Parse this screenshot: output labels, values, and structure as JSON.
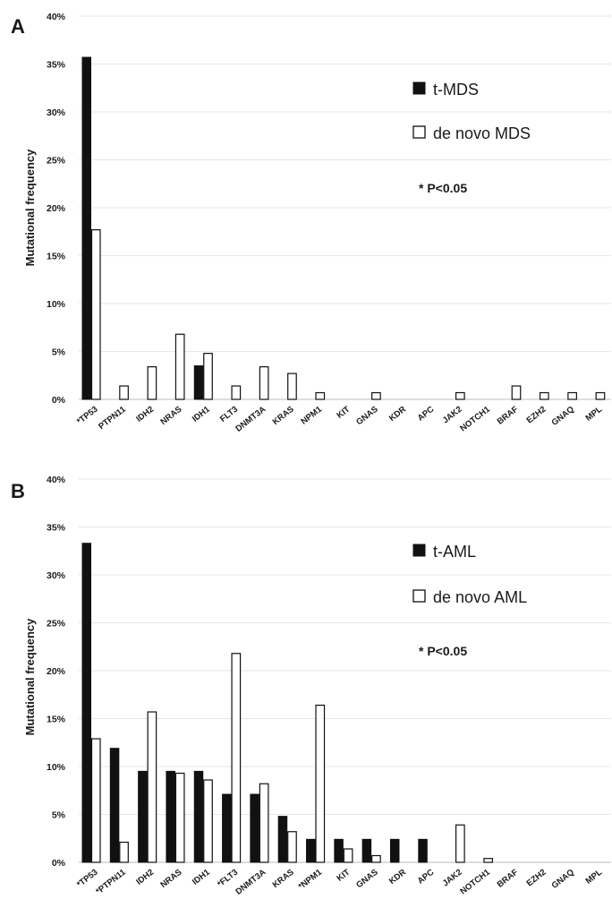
{
  "colors": {
    "mutant_bar": "#111111",
    "open_bar_fill": "#ffffff",
    "grid": "#e6e6e6"
  },
  "chart_data": [
    {
      "type": "bar",
      "panel": "A",
      "ylabel": "Mutational frequency",
      "ylim": [
        0,
        40
      ],
      "yticks": [
        "0%",
        "5%",
        "10%",
        "15%",
        "20%",
        "25%",
        "30%",
        "35%",
        "40%"
      ],
      "grid": true,
      "legend_position": "top-right",
      "note": "* P<0.05",
      "categories": [
        "*TP53",
        "PTPN11",
        "IDH2",
        "NRAS",
        "IDH1",
        "FLT3",
        "DNMT3A",
        "KRAS",
        "NPM1",
        "KIT",
        "GNAS",
        "KDR",
        "APC",
        "JAK2",
        "NOTCH1",
        "BRAF",
        "EZH2",
        "GNAQ",
        "MPL"
      ],
      "series": [
        {
          "name": "t-MDS",
          "style": "solid",
          "values": [
            35.7,
            0,
            0,
            0,
            3.5,
            0,
            0,
            0,
            0,
            0,
            0,
            0,
            0,
            0,
            0,
            0,
            0,
            0,
            0
          ]
        },
        {
          "name": "de novo MDS",
          "style": "open",
          "values": [
            17.7,
            1.4,
            3.4,
            6.8,
            4.8,
            1.4,
            3.4,
            2.7,
            0.7,
            0,
            0.7,
            0,
            0,
            0.7,
            0,
            1.4,
            0.7,
            0.7,
            0.7
          ]
        }
      ]
    },
    {
      "type": "bar",
      "panel": "B",
      "ylabel": "Mutational frequency",
      "ylim": [
        0,
        40
      ],
      "yticks": [
        "0%",
        "5%",
        "10%",
        "15%",
        "20%",
        "25%",
        "30%",
        "35%",
        "40%"
      ],
      "grid": true,
      "legend_position": "top-right",
      "note": "* P<0.05",
      "categories": [
        "*TP53",
        "*PTPN11",
        "IDH2",
        "NRAS",
        "IDH1",
        "*FLT3",
        "DNMT3A",
        "KRAS",
        "*NPM1",
        "KIT",
        "GNAS",
        "KDR",
        "APC",
        "JAK2",
        "NOTCH1",
        "BRAF",
        "EZH2",
        "GNAQ",
        "MPL"
      ],
      "series": [
        {
          "name": "t-AML",
          "style": "solid",
          "values": [
            33.3,
            11.9,
            9.5,
            9.5,
            9.5,
            7.1,
            7.1,
            4.8,
            2.4,
            2.4,
            2.4,
            2.4,
            2.4,
            0,
            0,
            0,
            0,
            0,
            0
          ]
        },
        {
          "name": "de novo AML",
          "style": "open",
          "values": [
            12.9,
            2.1,
            15.7,
            9.3,
            8.6,
            21.8,
            8.2,
            3.2,
            16.4,
            1.4,
            0.7,
            0,
            0,
            3.9,
            0.4,
            0,
            0,
            0,
            0
          ]
        }
      ]
    }
  ]
}
